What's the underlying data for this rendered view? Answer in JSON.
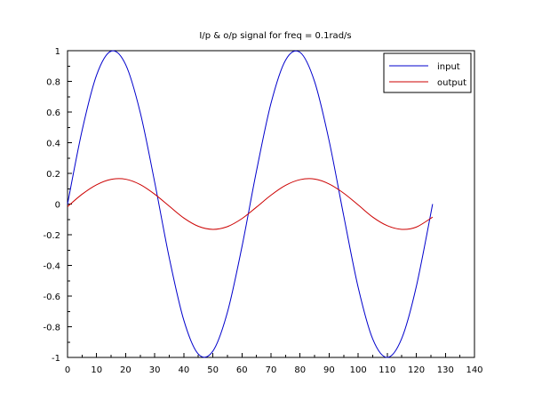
{
  "chart_data": {
    "type": "line",
    "title": "I/p & o/p signal for freq = 0.1rad/s",
    "xlabel": "",
    "ylabel": "",
    "xlim": [
      0,
      140
    ],
    "ylim": [
      -1,
      1
    ],
    "x_ticks": [
      "0",
      "10",
      "20",
      "30",
      "40",
      "50",
      "60",
      "70",
      "80",
      "90",
      "100",
      "110",
      "120",
      "130",
      "140"
    ],
    "y_ticks": [
      "1",
      "0.8",
      "0.6",
      "0.4",
      "0.2",
      "0",
      "-0.2",
      "-0.4",
      "-0.6",
      "-0.8",
      "-1"
    ],
    "grid": false,
    "legend_position": "top-right",
    "series": [
      {
        "name": "input",
        "color": "#0000cc",
        "x": [
          0,
          5,
          10,
          15,
          20,
          25,
          30,
          35,
          40,
          45,
          50,
          55,
          60,
          65,
          70,
          75,
          80,
          85,
          90,
          95,
          100,
          105,
          110,
          115,
          120,
          125.6
        ],
        "y": [
          0,
          0.479,
          0.841,
          0.997,
          0.909,
          0.598,
          0.141,
          -0.351,
          -0.757,
          -0.978,
          -0.959,
          -0.706,
          -0.279,
          0.215,
          0.657,
          0.938,
          0.989,
          0.798,
          0.412,
          -0.075,
          -0.544,
          -0.88,
          -1.0,
          -0.875,
          -0.537,
          0
        ]
      },
      {
        "name": "output",
        "color": "#cc0000",
        "x": [
          0,
          5,
          10,
          15,
          20,
          25,
          30,
          35,
          40,
          45,
          50,
          55,
          60,
          65,
          70,
          75,
          80,
          85,
          90,
          95,
          100,
          105,
          110,
          115,
          120,
          125.6
        ],
        "y": [
          -0.017,
          0.064,
          0.126,
          0.161,
          0.162,
          0.127,
          0.064,
          -0.014,
          -0.091,
          -0.145,
          -0.165,
          -0.147,
          -0.095,
          -0.02,
          0.058,
          0.122,
          0.159,
          0.163,
          0.131,
          0.071,
          -0.006,
          -0.085,
          -0.141,
          -0.165,
          -0.15,
          -0.085
        ]
      }
    ]
  }
}
